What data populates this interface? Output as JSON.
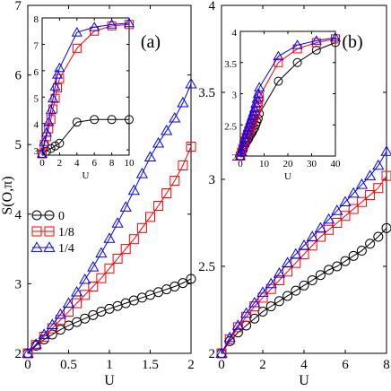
{
  "figure": {
    "ylabel": "S(O,π)",
    "legend": [
      {
        "label": "0",
        "color": "#000000",
        "marker": "circle"
      },
      {
        "label": "1/8",
        "color": "#ff0000",
        "marker": "square"
      },
      {
        "label": "1/4",
        "color": "#0000ff",
        "marker": "triangle"
      }
    ]
  },
  "chart_data": [
    {
      "panel": "(a)",
      "type": "line",
      "xlabel": "U",
      "ylabel": "S(O,π)",
      "xlim": [
        0,
        2
      ],
      "ylim": [
        2,
        7
      ],
      "xticks": [
        "0",
        "0.5",
        "1",
        "1.5",
        "2"
      ],
      "yticks": [
        "2",
        "3",
        "4",
        "5",
        "6",
        "7"
      ],
      "series": [
        {
          "name": "0",
          "color": "#000000",
          "marker": "circle",
          "x": [
            0,
            0.1,
            0.2,
            0.3,
            0.4,
            0.5,
            0.6,
            0.7,
            0.8,
            0.9,
            1.0,
            1.1,
            1.2,
            1.3,
            1.4,
            1.5,
            1.6,
            1.7,
            1.8,
            1.9,
            2.0
          ],
          "y": [
            2.0,
            2.11,
            2.2,
            2.27,
            2.34,
            2.4,
            2.45,
            2.5,
            2.55,
            2.6,
            2.64,
            2.68,
            2.72,
            2.76,
            2.8,
            2.84,
            2.88,
            2.92,
            2.96,
            3.01,
            3.07
          ]
        },
        {
          "name": "1/8",
          "color": "#ff0000",
          "marker": "square",
          "x": [
            0,
            0.1,
            0.2,
            0.3,
            0.4,
            0.5,
            0.6,
            0.7,
            0.8,
            0.9,
            1.0,
            1.1,
            1.2,
            1.3,
            1.4,
            1.5,
            1.6,
            1.7,
            1.8,
            1.9,
            2.0
          ],
          "y": [
            2.0,
            2.12,
            2.24,
            2.36,
            2.48,
            2.6,
            2.72,
            2.84,
            2.96,
            3.08,
            3.22,
            3.36,
            3.5,
            3.64,
            3.8,
            3.96,
            4.12,
            4.3,
            4.48,
            4.7,
            4.97
          ]
        },
        {
          "name": "1/4",
          "color": "#0000ff",
          "marker": "triangle",
          "x": [
            0,
            0.1,
            0.2,
            0.3,
            0.4,
            0.5,
            0.6,
            0.7,
            0.8,
            0.9,
            1.0,
            1.1,
            1.2,
            1.3,
            1.4,
            1.5,
            1.6,
            1.7,
            1.8,
            1.9,
            2.0
          ],
          "y": [
            2.0,
            2.13,
            2.27,
            2.41,
            2.56,
            2.72,
            2.88,
            3.06,
            3.24,
            3.44,
            3.65,
            3.87,
            4.1,
            4.34,
            4.58,
            4.82,
            5.02,
            5.2,
            5.38,
            5.6,
            5.87
          ]
        }
      ],
      "inset": {
        "xlabel": "U",
        "xlim": [
          0,
          10
        ],
        "ylim": [
          2.8,
          8
        ],
        "xticks": [
          "0",
          "2",
          "4",
          "6",
          "8",
          "10"
        ],
        "yticks": [
          "3",
          "4",
          "5",
          "6",
          "7",
          "8"
        ],
        "series": [
          {
            "name": "0",
            "color": "#000000",
            "marker": "circle",
            "x": [
              0,
              0.5,
              1,
              1.5,
              2,
              4,
              6,
              8,
              10
            ],
            "y": [
              2.85,
              2.95,
              3.05,
              3.15,
              3.25,
              4.05,
              4.15,
              4.15,
              4.15
            ]
          },
          {
            "name": "1/8",
            "color": "#ff0000",
            "marker": "square",
            "x": [
              0,
              0.25,
              0.5,
              0.75,
              1,
              1.25,
              1.5,
              1.75,
              2,
              4,
              6,
              8,
              10
            ],
            "y": [
              2.85,
              3.2,
              3.5,
              3.8,
              4.15,
              4.55,
              4.95,
              5.35,
              5.7,
              6.85,
              7.5,
              7.7,
              7.75
            ]
          },
          {
            "name": "1/4",
            "color": "#0000ff",
            "marker": "triangle",
            "x": [
              0,
              0.25,
              0.5,
              0.75,
              1,
              1.25,
              1.5,
              1.75,
              2,
              4,
              6,
              8,
              10
            ],
            "y": [
              2.85,
              3.3,
              3.65,
              4.05,
              4.5,
              4.95,
              5.4,
              5.85,
              6.1,
              7.45,
              7.65,
              7.75,
              7.8
            ]
          }
        ]
      }
    },
    {
      "panel": "(b)",
      "type": "line",
      "xlabel": "U",
      "ylabel": "",
      "xlim": [
        0,
        8
      ],
      "ylim": [
        2,
        4
      ],
      "xticks": [
        "0",
        "2",
        "4",
        "6",
        "8"
      ],
      "yticks": [
        "2",
        "2.5",
        "3",
        "3.5",
        "4"
      ],
      "series": [
        {
          "name": "0",
          "color": "#000000",
          "marker": "circle",
          "x": [
            0,
            0.4,
            0.8,
            1.2,
            1.6,
            2.0,
            2.4,
            2.8,
            3.2,
            3.6,
            4.0,
            4.4,
            4.8,
            5.2,
            5.6,
            6.0,
            6.4,
            6.8,
            7.2,
            7.6,
            8.0
          ],
          "y": [
            2.0,
            2.07,
            2.12,
            2.16,
            2.2,
            2.24,
            2.27,
            2.3,
            2.33,
            2.36,
            2.39,
            2.42,
            2.45,
            2.48,
            2.5,
            2.53,
            2.56,
            2.59,
            2.63,
            2.67,
            2.72
          ]
        },
        {
          "name": "1/8",
          "color": "#ff0000",
          "marker": "square",
          "x": [
            0,
            0.4,
            0.8,
            1.2,
            1.6,
            2.0,
            2.4,
            2.8,
            3.2,
            3.6,
            4.0,
            4.4,
            4.8,
            5.2,
            5.6,
            6.0,
            6.4,
            6.8,
            7.2,
            7.6,
            8.0
          ],
          "y": [
            2.0,
            2.08,
            2.15,
            2.21,
            2.27,
            2.32,
            2.37,
            2.42,
            2.47,
            2.52,
            2.57,
            2.62,
            2.67,
            2.71,
            2.75,
            2.79,
            2.83,
            2.87,
            2.91,
            2.95,
            3.02
          ]
        },
        {
          "name": "1/4",
          "color": "#0000ff",
          "marker": "triangle",
          "x": [
            0,
            0.4,
            0.8,
            1.2,
            1.6,
            2.0,
            2.4,
            2.8,
            3.2,
            3.6,
            4.0,
            4.4,
            4.8,
            5.2,
            5.6,
            6.0,
            6.4,
            6.8,
            7.2,
            7.6,
            8.0
          ],
          "y": [
            2.0,
            2.09,
            2.16,
            2.23,
            2.29,
            2.35,
            2.4,
            2.46,
            2.52,
            2.57,
            2.62,
            2.67,
            2.72,
            2.77,
            2.82,
            2.87,
            2.92,
            2.97,
            3.02,
            3.08,
            3.16
          ]
        }
      ],
      "inset": {
        "xlabel": "U",
        "xlim": [
          0,
          40
        ],
        "ylim": [
          2,
          4
        ],
        "xticks": [
          "0",
          "10",
          "20",
          "30",
          "40"
        ],
        "yticks": [
          "2",
          "2.5",
          "3",
          "3.5",
          "4"
        ],
        "series": [
          {
            "name": "0",
            "color": "#000000",
            "marker": "circle",
            "x": [
              0,
              0.5,
              1,
              1.5,
              2,
              2.5,
              3,
              3.5,
              4,
              4.5,
              5,
              5.5,
              6,
              6.5,
              7,
              7.5,
              8,
              16,
              24,
              32,
              40
            ],
            "y": [
              2.0,
              2.05,
              2.1,
              2.15,
              2.18,
              2.22,
              2.25,
              2.28,
              2.32,
              2.35,
              2.38,
              2.42,
              2.45,
              2.5,
              2.55,
              2.6,
              2.68,
              3.2,
              3.5,
              3.7,
              3.82
            ]
          },
          {
            "name": "1/8",
            "color": "#ff0000",
            "marker": "square",
            "x": [
              0,
              0.5,
              1,
              1.5,
              2,
              2.5,
              3,
              3.5,
              4,
              4.5,
              5,
              5.5,
              6,
              6.5,
              7,
              7.5,
              8,
              16,
              24,
              32,
              40
            ],
            "y": [
              2.0,
              2.06,
              2.12,
              2.18,
              2.24,
              2.3,
              2.35,
              2.4,
              2.45,
              2.5,
              2.55,
              2.6,
              2.66,
              2.72,
              2.78,
              2.86,
              2.95,
              3.5,
              3.72,
              3.82,
              3.88
            ]
          },
          {
            "name": "1/4",
            "color": "#0000ff",
            "marker": "triangle",
            "x": [
              0,
              0.5,
              1,
              1.5,
              2,
              2.5,
              3,
              3.5,
              4,
              4.5,
              5,
              5.5,
              6,
              6.5,
              7,
              7.5,
              8,
              16,
              24,
              32,
              40
            ],
            "y": [
              2.0,
              2.07,
              2.14,
              2.21,
              2.28,
              2.34,
              2.4,
              2.46,
              2.52,
              2.58,
              2.64,
              2.7,
              2.76,
              2.84,
              2.92,
              3.0,
              3.1,
              3.6,
              3.78,
              3.85,
              3.9
            ]
          }
        ]
      }
    }
  ]
}
